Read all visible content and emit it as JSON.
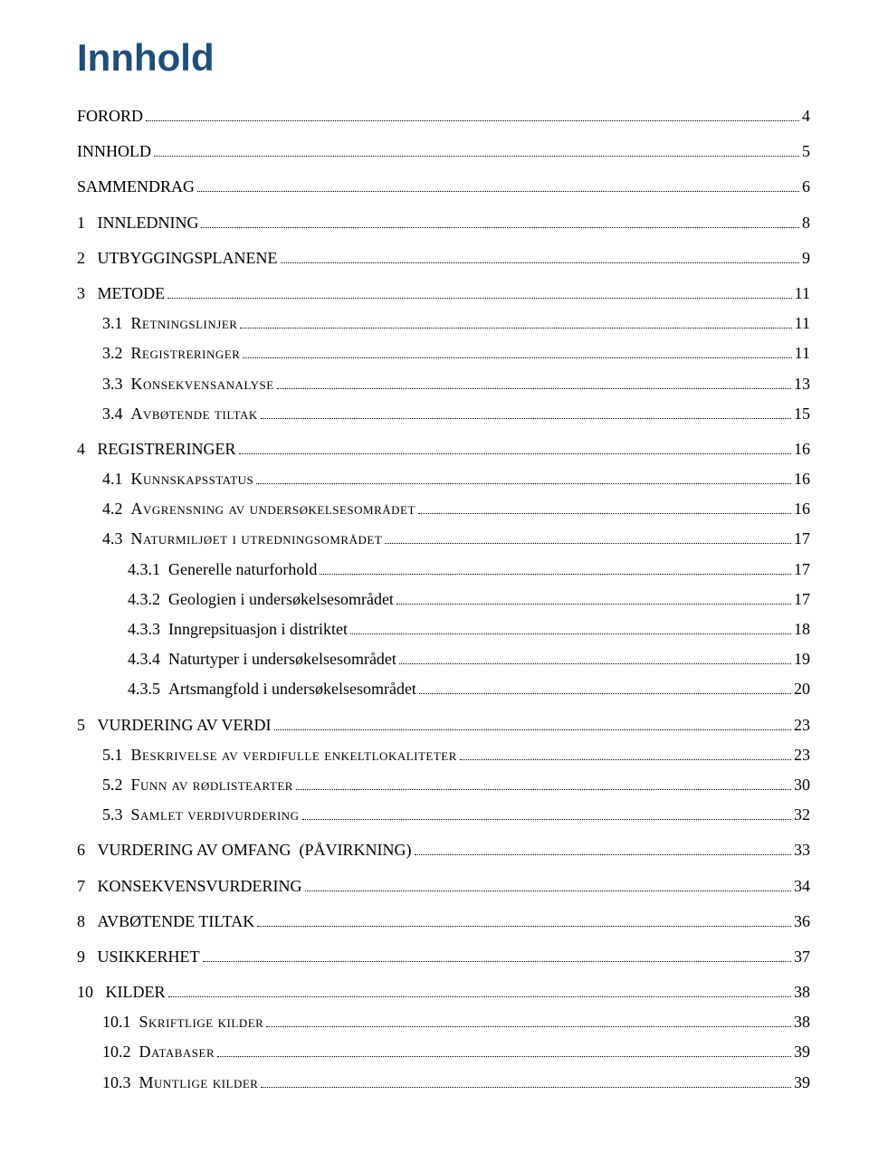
{
  "title": "Innhold",
  "colors": {
    "title": "#1f4e79",
    "text": "#000000",
    "background": "#ffffff"
  },
  "toc": [
    {
      "level": 0,
      "num": "",
      "label": "FORORD",
      "page": "4"
    },
    {
      "level": 0,
      "num": "",
      "label": "INNHOLD",
      "page": "5"
    },
    {
      "level": 0,
      "num": "",
      "label": "SAMMENDRAG",
      "page": "6"
    },
    {
      "level": 1,
      "num": "1",
      "label": "INNLEDNING",
      "page": "8"
    },
    {
      "level": 1,
      "num": "2",
      "label": "UTBYGGINGSPLANENE",
      "page": "9"
    },
    {
      "level": 1,
      "num": "3",
      "label": "METODE",
      "page": "11"
    },
    {
      "level": 2,
      "num": "3.1",
      "label": "Retningslinjer",
      "smallcaps": true,
      "page": "11"
    },
    {
      "level": 2,
      "num": "3.2",
      "label": "Registreringer",
      "smallcaps": true,
      "page": "11"
    },
    {
      "level": 2,
      "num": "3.3",
      "label": "Konsekvensanalyse",
      "smallcaps": true,
      "page": "13"
    },
    {
      "level": 2,
      "num": "3.4",
      "label": "Avbøtende tiltak",
      "smallcaps": true,
      "page": "15"
    },
    {
      "level": 1,
      "num": "4",
      "label": "REGISTRERINGER",
      "page": "16"
    },
    {
      "level": 2,
      "num": "4.1",
      "label": "Kunnskapsstatus",
      "smallcaps": true,
      "page": "16"
    },
    {
      "level": 2,
      "num": "4.2",
      "label": "Avgrensning av undersøkelsesområdet",
      "smallcaps": true,
      "page": "16"
    },
    {
      "level": 2,
      "num": "4.3",
      "label": "Naturmiljøet i utredningsområdet",
      "smallcaps": true,
      "page": "17"
    },
    {
      "level": 3,
      "num": "4.3.1",
      "label": "Generelle naturforhold",
      "page": "17"
    },
    {
      "level": 3,
      "num": "4.3.2",
      "label": "Geologien i undersøkelsesområdet",
      "page": "17"
    },
    {
      "level": 3,
      "num": "4.3.3",
      "label": "Inngrepsituasjon i distriktet",
      "page": "18"
    },
    {
      "level": 3,
      "num": "4.3.4",
      "label": "Naturtyper i undersøkelsesområdet",
      "page": "19"
    },
    {
      "level": 3,
      "num": "4.3.5",
      "label": "Artsmangfold i undersøkelsesområdet",
      "page": "20"
    },
    {
      "level": 1,
      "num": "5",
      "label": "VURDERING AV VERDI",
      "page": "23"
    },
    {
      "level": 2,
      "num": "5.1",
      "label": "Beskrivelse av verdifulle enkeltlokaliteter",
      "smallcaps": true,
      "page": "23"
    },
    {
      "level": 2,
      "num": "5.2",
      "label": "Funn av rødlistearter",
      "smallcaps": true,
      "page": "30"
    },
    {
      "level": 2,
      "num": "5.3",
      "label": "Samlet verdivurdering",
      "smallcaps": true,
      "page": "32"
    },
    {
      "level": 1,
      "num": "6",
      "label": "VURDERING AV OMFANG  (PÅVIRKNING)",
      "page": "33"
    },
    {
      "level": 1,
      "num": "7",
      "label": "KONSEKVENSVURDERING",
      "page": "34"
    },
    {
      "level": 1,
      "num": "8",
      "label": "AVBØTENDE TILTAK",
      "page": "36"
    },
    {
      "level": 1,
      "num": "9",
      "label": "USIKKERHET",
      "page": "37"
    },
    {
      "level": 1,
      "num": "10",
      "label": "KILDER",
      "page": "38"
    },
    {
      "level": 2,
      "num": "10.1",
      "label": "Skriftlige kilder",
      "smallcaps": true,
      "page": "38"
    },
    {
      "level": 2,
      "num": "10.2",
      "label": "Databaser",
      "smallcaps": true,
      "page": "39"
    },
    {
      "level": 2,
      "num": "10.3",
      "label": "Muntlige kilder",
      "smallcaps": true,
      "page": "39"
    }
  ]
}
